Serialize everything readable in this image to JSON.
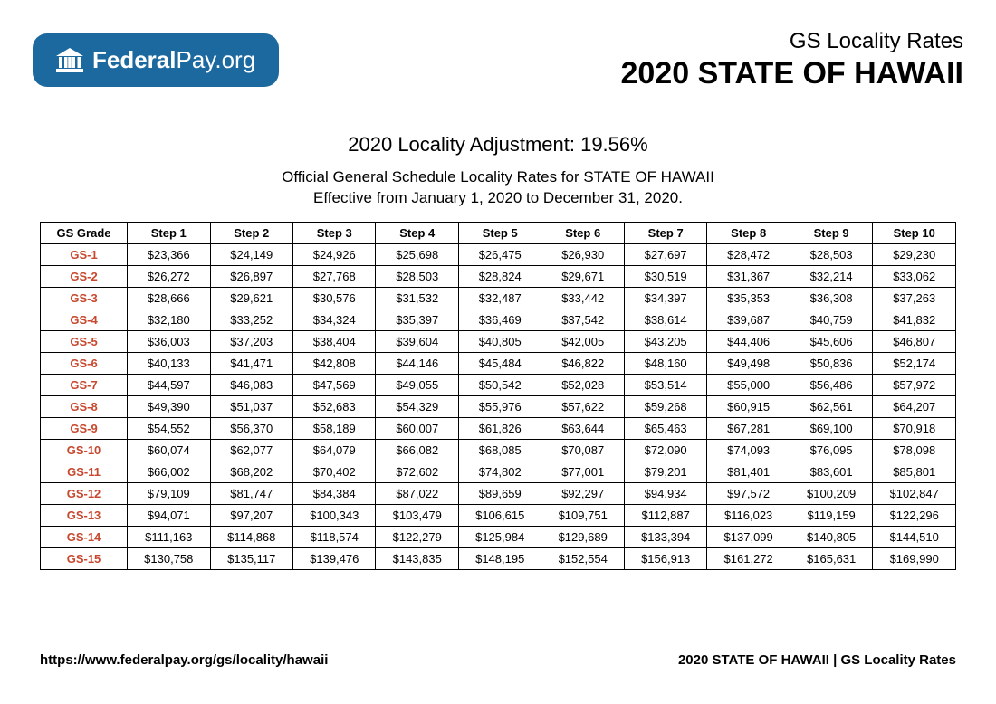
{
  "logo": {
    "text_bold": "Federal",
    "text_thin": "Pay.org"
  },
  "header": {
    "subtitle": "GS Locality Rates",
    "title": "2020 STATE OF HAWAII"
  },
  "intro": {
    "adjustment": "2020 Locality Adjustment: 19.56%",
    "line1": "Official General Schedule Locality Rates for STATE OF HAWAII",
    "line2": "Effective from January 1, 2020 to December 31, 2020."
  },
  "table": {
    "columns": [
      "GS Grade",
      "Step 1",
      "Step 2",
      "Step 3",
      "Step 4",
      "Step 5",
      "Step 6",
      "Step 7",
      "Step 8",
      "Step 9",
      "Step 10"
    ],
    "rows": [
      [
        "GS-1",
        "$23,366",
        "$24,149",
        "$24,926",
        "$25,698",
        "$26,475",
        "$26,930",
        "$27,697",
        "$28,472",
        "$28,503",
        "$29,230"
      ],
      [
        "GS-2",
        "$26,272",
        "$26,897",
        "$27,768",
        "$28,503",
        "$28,824",
        "$29,671",
        "$30,519",
        "$31,367",
        "$32,214",
        "$33,062"
      ],
      [
        "GS-3",
        "$28,666",
        "$29,621",
        "$30,576",
        "$31,532",
        "$32,487",
        "$33,442",
        "$34,397",
        "$35,353",
        "$36,308",
        "$37,263"
      ],
      [
        "GS-4",
        "$32,180",
        "$33,252",
        "$34,324",
        "$35,397",
        "$36,469",
        "$37,542",
        "$38,614",
        "$39,687",
        "$40,759",
        "$41,832"
      ],
      [
        "GS-5",
        "$36,003",
        "$37,203",
        "$38,404",
        "$39,604",
        "$40,805",
        "$42,005",
        "$43,205",
        "$44,406",
        "$45,606",
        "$46,807"
      ],
      [
        "GS-6",
        "$40,133",
        "$41,471",
        "$42,808",
        "$44,146",
        "$45,484",
        "$46,822",
        "$48,160",
        "$49,498",
        "$50,836",
        "$52,174"
      ],
      [
        "GS-7",
        "$44,597",
        "$46,083",
        "$47,569",
        "$49,055",
        "$50,542",
        "$52,028",
        "$53,514",
        "$55,000",
        "$56,486",
        "$57,972"
      ],
      [
        "GS-8",
        "$49,390",
        "$51,037",
        "$52,683",
        "$54,329",
        "$55,976",
        "$57,622",
        "$59,268",
        "$60,915",
        "$62,561",
        "$64,207"
      ],
      [
        "GS-9",
        "$54,552",
        "$56,370",
        "$58,189",
        "$60,007",
        "$61,826",
        "$63,644",
        "$65,463",
        "$67,281",
        "$69,100",
        "$70,918"
      ],
      [
        "GS-10",
        "$60,074",
        "$62,077",
        "$64,079",
        "$66,082",
        "$68,085",
        "$70,087",
        "$72,090",
        "$74,093",
        "$76,095",
        "$78,098"
      ],
      [
        "GS-11",
        "$66,002",
        "$68,202",
        "$70,402",
        "$72,602",
        "$74,802",
        "$77,001",
        "$79,201",
        "$81,401",
        "$83,601",
        "$85,801"
      ],
      [
        "GS-12",
        "$79,109",
        "$81,747",
        "$84,384",
        "$87,022",
        "$89,659",
        "$92,297",
        "$94,934",
        "$97,572",
        "$100,209",
        "$102,847"
      ],
      [
        "GS-13",
        "$94,071",
        "$97,207",
        "$100,343",
        "$103,479",
        "$106,615",
        "$109,751",
        "$112,887",
        "$116,023",
        "$119,159",
        "$122,296"
      ],
      [
        "GS-14",
        "$111,163",
        "$114,868",
        "$118,574",
        "$122,279",
        "$125,984",
        "$129,689",
        "$133,394",
        "$137,099",
        "$140,805",
        "$144,510"
      ],
      [
        "GS-15",
        "$130,758",
        "$135,117",
        "$139,476",
        "$143,835",
        "$148,195",
        "$152,554",
        "$156,913",
        "$161,272",
        "$165,631",
        "$169,990"
      ]
    ],
    "grade_color": "#c7482e",
    "border_color": "#000000",
    "column_widths_pct": [
      9.5,
      9.05,
      9.05,
      9.05,
      9.05,
      9.05,
      9.05,
      9.05,
      9.05,
      9.05,
      9.05
    ]
  },
  "footer": {
    "left": "https://www.federalpay.org/gs/locality/hawaii",
    "right": "2020 STATE OF HAWAII | GS Locality Rates"
  },
  "colors": {
    "logo_bg": "#1b699f",
    "text": "#000000"
  }
}
